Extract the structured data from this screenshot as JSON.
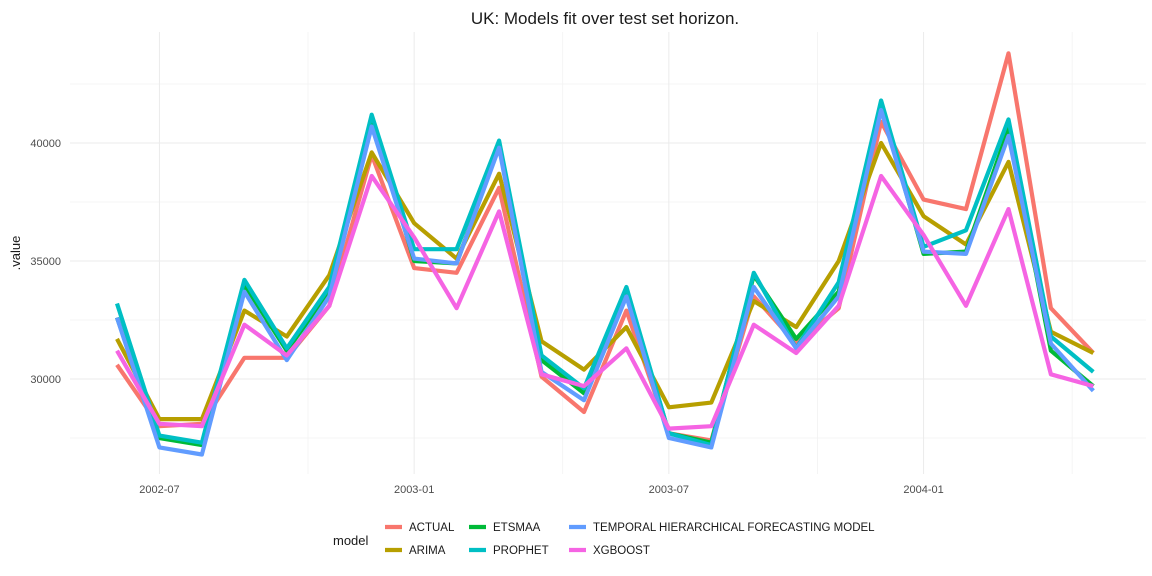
{
  "chart_data": {
    "type": "line",
    "title": "UK: Models fit over test set horizon.",
    "xlabel": "",
    "ylabel": ".value",
    "x": [
      "2002-06",
      "2002-07",
      "2002-08",
      "2002-09",
      "2002-10",
      "2002-11",
      "2002-12",
      "2003-01",
      "2003-02",
      "2003-03",
      "2003-04",
      "2003-05",
      "2003-06",
      "2003-07",
      "2003-08",
      "2003-09",
      "2003-10",
      "2003-11",
      "2003-12",
      "2004-01",
      "2004-02",
      "2004-03",
      "2004-04",
      "2004-05"
    ],
    "x_ticks": [
      "2002-07",
      "2003-01",
      "2003-07",
      "2004-01"
    ],
    "y_ticks": [
      30000,
      35000,
      40000
    ],
    "ylim": [
      25800,
      44700
    ],
    "grid": true,
    "legend": {
      "title": "model",
      "position": "bottom"
    },
    "series": [
      {
        "name": "ACTUAL",
        "color": "#F8766D",
        "values": [
          30600,
          28000,
          28100,
          30900,
          30900,
          33100,
          39500,
          34700,
          34500,
          38100,
          30100,
          28600,
          32900,
          27700,
          27400,
          33500,
          31500,
          33000,
          40900,
          37600,
          37200,
          43800,
          33000,
          31100
        ]
      },
      {
        "name": "ARIMA",
        "color": "#B79F00",
        "values": [
          31700,
          28300,
          28300,
          32900,
          31800,
          34400,
          39600,
          36600,
          35100,
          38700,
          31600,
          30400,
          32200,
          28800,
          29000,
          33300,
          32200,
          35000,
          40000,
          36900,
          35700,
          39200,
          32000,
          31100
        ]
      },
      {
        "name": "ETSMAA",
        "color": "#00BA38",
        "values": [
          32600,
          27500,
          27200,
          34000,
          31200,
          33700,
          41100,
          35000,
          34900,
          39900,
          30800,
          29400,
          33800,
          27700,
          27300,
          34400,
          31700,
          33700,
          41600,
          35300,
          35400,
          40600,
          31200,
          29700
        ]
      },
      {
        "name": "PROPHET",
        "color": "#00BFC4",
        "values": [
          33200,
          27600,
          27300,
          34200,
          31300,
          33900,
          41200,
          35500,
          35500,
          40100,
          31000,
          29600,
          33900,
          27700,
          27200,
          34500,
          31300,
          34100,
          41800,
          35600,
          36300,
          41000,
          31800,
          30300
        ]
      },
      {
        "name": "TEMPORAL HIERARCHICAL FORECASTING MODEL",
        "color": "#619CFF",
        "values": [
          32600,
          27100,
          26800,
          33700,
          30800,
          33500,
          40700,
          35100,
          34900,
          39800,
          30300,
          29100,
          33500,
          27500,
          27100,
          33900,
          31300,
          33500,
          41400,
          35400,
          35300,
          40300,
          31500,
          29500
        ]
      },
      {
        "name": "XGBOOST",
        "color": "#F564E3",
        "values": [
          31200,
          28100,
          28000,
          32300,
          31000,
          33100,
          38600,
          36000,
          33000,
          37100,
          30200,
          29700,
          31300,
          27900,
          28000,
          32300,
          31100,
          33100,
          38600,
          36100,
          33100,
          37200,
          30200,
          29700
        ]
      }
    ]
  }
}
